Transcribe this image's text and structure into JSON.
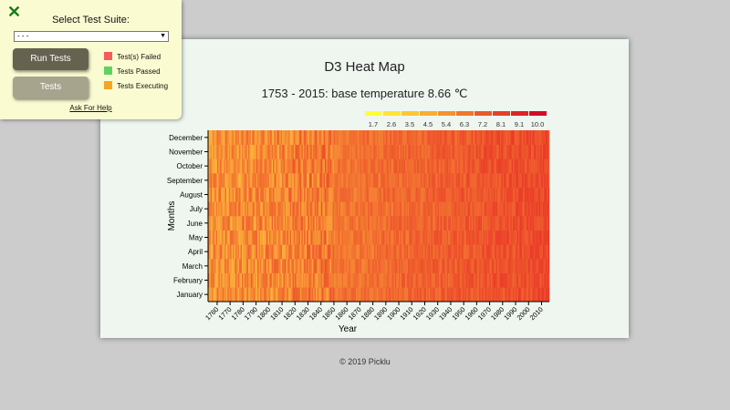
{
  "panel": {
    "title": "Select Test Suite:",
    "select_value": "- - -",
    "run_button": "Run Tests",
    "tests_button": "Tests",
    "legend": [
      {
        "label": "Test(s) Failed",
        "color": "#f45b5b"
      },
      {
        "label": "Tests Passed",
        "color": "#5fd35f"
      },
      {
        "label": "Tests Executing",
        "color": "#f5a623"
      }
    ],
    "help_link": "Ask For Help"
  },
  "footer": "© 2019 Picklu",
  "chart_data": {
    "type": "heatmap",
    "title": "D3 Heat Map",
    "subtitle": "1753 - 2015: base temperature 8.66 ℃",
    "xlabel": "Year",
    "ylabel": "Months",
    "x_range": [
      1753,
      2015
    ],
    "x_ticks": [
      "1760",
      "1770",
      "1780",
      "1790",
      "1800",
      "1810",
      "1820",
      "1830",
      "1840",
      "1850",
      "1860",
      "1870",
      "1880",
      "1890",
      "1900",
      "1910",
      "1920",
      "1930",
      "1940",
      "1950",
      "1960",
      "1970",
      "1980",
      "1990",
      "2000",
      "2010"
    ],
    "months": [
      "January",
      "February",
      "March",
      "April",
      "May",
      "June",
      "July",
      "August",
      "September",
      "October",
      "November",
      "December"
    ],
    "legend_thresholds": [
      "1.7",
      "2.6",
      "3.5",
      "4.5",
      "5.4",
      "6.3",
      "7.2",
      "8.1",
      "9.1",
      "10.0"
    ],
    "legend_colors": [
      "#ffff33",
      "#ffe434",
      "#fcc834",
      "#f9ad32",
      "#f5922f",
      "#f0772c",
      "#ea5b29",
      "#e44027",
      "#dd2426",
      "#d40a26"
    ],
    "cell_color_range": [
      "#fcb43a",
      "#ea3a28"
    ],
    "legend_position": "top-right"
  }
}
